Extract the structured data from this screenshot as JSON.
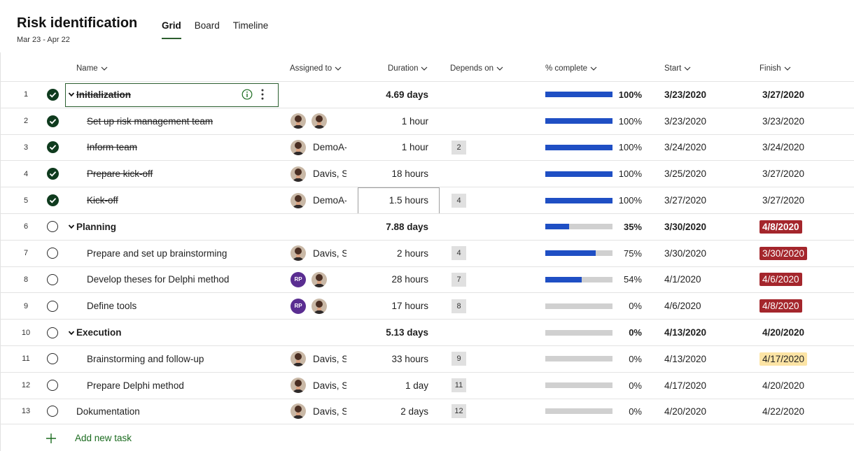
{
  "header": {
    "title": "Risk identification",
    "date_range": "Mar 23 - Apr 22",
    "tabs": [
      {
        "label": "Grid",
        "active": true
      },
      {
        "label": "Board",
        "active": false
      },
      {
        "label": "Timeline",
        "active": false
      }
    ]
  },
  "columns": {
    "name": "Name",
    "assigned": "Assigned to",
    "duration": "Duration",
    "depends": "Depends on",
    "complete": "% complete",
    "start": "Start",
    "finish": "Finish"
  },
  "colors": {
    "accent_green": "#2c5e2e",
    "progress_blue": "#1f4fc4",
    "late_red": "#a4262c",
    "warning_yellow": "#fce4a5",
    "avatar_purple": "#5a2d91"
  },
  "rows": [
    {
      "num": "1",
      "name": "Initialization",
      "level": "summary",
      "done": true,
      "assignees": [],
      "assignee_name": "",
      "duration": "4.69 days",
      "depends": "",
      "progress": 100,
      "pct": "100%",
      "start": "3/23/2020",
      "finish": "3/27/2020",
      "finish_style": "",
      "selected": true
    },
    {
      "num": "2",
      "name": "Set up risk management team",
      "level": "child",
      "done": true,
      "assignees": [
        "photo",
        "photo"
      ],
      "assignee_name": "",
      "duration": "1 hour",
      "depends": "",
      "progress": 100,
      "pct": "100%",
      "start": "3/23/2020",
      "finish": "3/23/2020",
      "finish_style": ""
    },
    {
      "num": "3",
      "name": "Inform team",
      "level": "child",
      "done": true,
      "assignees": [
        "photo"
      ],
      "assignee_name": "DemoA-",
      "duration": "1 hour",
      "depends": "2",
      "progress": 100,
      "pct": "100%",
      "start": "3/24/2020",
      "finish": "3/24/2020",
      "finish_style": ""
    },
    {
      "num": "4",
      "name": "Prepare kick-off",
      "level": "child",
      "done": true,
      "assignees": [
        "photo"
      ],
      "assignee_name": "Davis, Sa",
      "duration": "18 hours",
      "depends": "",
      "progress": 100,
      "pct": "100%",
      "start": "3/25/2020",
      "finish": "3/27/2020",
      "finish_style": ""
    },
    {
      "num": "5",
      "name": "Kick-off",
      "level": "child",
      "done": true,
      "assignees": [
        "photo"
      ],
      "assignee_name": "DemoA-",
      "duration": "1.5 hours",
      "duration_editing": true,
      "depends": "4",
      "progress": 100,
      "pct": "100%",
      "start": "3/27/2020",
      "finish": "3/27/2020",
      "finish_style": ""
    },
    {
      "num": "6",
      "name": "Planning",
      "level": "summary",
      "done": false,
      "assignees": [],
      "assignee_name": "",
      "duration": "7.88 days",
      "depends": "",
      "progress": 35,
      "pct": "35%",
      "start": "3/30/2020",
      "finish": "4/8/2020",
      "finish_style": "late"
    },
    {
      "num": "7",
      "name": "Prepare and set up brainstorming",
      "level": "child",
      "done": false,
      "assignees": [
        "photo"
      ],
      "assignee_name": "Davis, Sa",
      "duration": "2 hours",
      "depends": "4",
      "progress": 75,
      "pct": "75%",
      "start": "3/30/2020",
      "finish": "3/30/2020",
      "finish_style": "late"
    },
    {
      "num": "8",
      "name": "Develop theses for Delphi method",
      "level": "child",
      "done": false,
      "assignees": [
        "RP",
        "photo"
      ],
      "assignee_name": "",
      "duration": "28 hours",
      "depends": "7",
      "progress": 54,
      "pct": "54%",
      "start": "4/1/2020",
      "finish": "4/6/2020",
      "finish_style": "late"
    },
    {
      "num": "9",
      "name": "Define tools",
      "level": "child",
      "done": false,
      "assignees": [
        "RP",
        "photo"
      ],
      "assignee_name": "",
      "duration": "17 hours",
      "depends": "8",
      "progress": 0,
      "pct": "0%",
      "start": "4/6/2020",
      "finish": "4/8/2020",
      "finish_style": "late"
    },
    {
      "num": "10",
      "name": "Execution",
      "level": "summary",
      "done": false,
      "assignees": [],
      "assignee_name": "",
      "duration": "5.13 days",
      "depends": "",
      "progress": 0,
      "pct": "0%",
      "start": "4/13/2020",
      "finish": "4/20/2020",
      "finish_style": ""
    },
    {
      "num": "11",
      "name": "Brainstorming and follow-up",
      "level": "child",
      "done": false,
      "assignees": [
        "photo"
      ],
      "assignee_name": "Davis, Sa",
      "duration": "33 hours",
      "depends": "9",
      "progress": 0,
      "pct": "0%",
      "start": "4/13/2020",
      "finish": "4/17/2020",
      "finish_style": "warn"
    },
    {
      "num": "12",
      "name": "Prepare Delphi method",
      "level": "child",
      "done": false,
      "assignees": [
        "photo"
      ],
      "assignee_name": "Davis, Sa",
      "duration": "1 day",
      "depends": "11",
      "progress": 0,
      "pct": "0%",
      "start": "4/17/2020",
      "finish": "4/20/2020",
      "finish_style": ""
    },
    {
      "num": "13",
      "name": "Dokumentation",
      "level": "top",
      "done": false,
      "assignees": [
        "photo"
      ],
      "assignee_name": "Davis, Sa",
      "duration": "2 days",
      "depends": "12",
      "progress": 0,
      "pct": "0%",
      "start": "4/20/2020",
      "finish": "4/22/2020",
      "finish_style": ""
    }
  ],
  "add_task": {
    "label": "Add new task"
  }
}
